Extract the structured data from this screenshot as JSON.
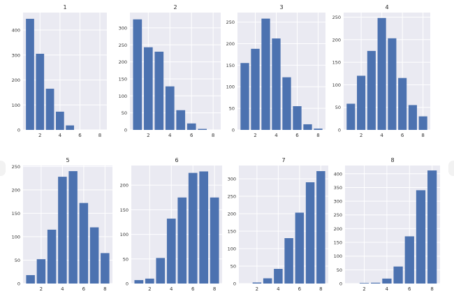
{
  "chart_data": [
    {
      "type": "bar",
      "title": "1",
      "x": [
        1,
        2,
        3,
        4,
        5
      ],
      "values": [
        445,
        305,
        165,
        73,
        18
      ],
      "ylim": [
        0,
        470
      ],
      "yticks": [
        0,
        100,
        200,
        300,
        400
      ],
      "xticks": [
        2,
        4,
        6,
        8
      ],
      "xlim": [
        0.3,
        8.7
      ],
      "grid": true,
      "color": "#4c72b0"
    },
    {
      "type": "bar",
      "title": "2",
      "x": [
        1,
        2,
        3,
        4,
        5,
        6,
        7
      ],
      "values": [
        325,
        243,
        230,
        128,
        58,
        19,
        3
      ],
      "ylim": [
        0,
        345
      ],
      "yticks": [
        0,
        50,
        100,
        150,
        200,
        250,
        300
      ],
      "xticks": [
        2,
        4,
        6,
        8
      ],
      "xlim": [
        0.3,
        8.7
      ],
      "grid": true,
      "color": "#4c72b0"
    },
    {
      "type": "bar",
      "title": "3",
      "x": [
        1,
        2,
        3,
        4,
        5,
        6,
        7,
        8
      ],
      "values": [
        155,
        188,
        258,
        212,
        122,
        55,
        13,
        3
      ],
      "ylim": [
        0,
        272
      ],
      "yticks": [
        0,
        50,
        100,
        150,
        200,
        250
      ],
      "xticks": [
        2,
        4,
        6,
        8
      ],
      "xlim": [
        0.3,
        8.7
      ],
      "grid": true,
      "color": "#4c72b0"
    },
    {
      "type": "bar",
      "title": "4",
      "x": [
        1,
        2,
        3,
        4,
        5,
        6,
        7,
        8
      ],
      "values": [
        58,
        120,
        175,
        248,
        203,
        115,
        55,
        30
      ],
      "ylim": [
        0,
        260
      ],
      "yticks": [
        0,
        50,
        100,
        150,
        200,
        250
      ],
      "xticks": [
        2,
        4,
        6,
        8
      ],
      "xlim": [
        0.3,
        8.7
      ],
      "grid": true,
      "color": "#4c72b0"
    },
    {
      "type": "bar",
      "title": "5",
      "x": [
        1,
        2,
        3,
        4,
        5,
        6,
        7,
        8
      ],
      "values": [
        18,
        52,
        115,
        228,
        240,
        172,
        120,
        65
      ],
      "ylim": [
        0,
        252
      ],
      "yticks": [
        0,
        50,
        100,
        150,
        200,
        250
      ],
      "xticks": [
        2,
        4,
        6,
        8
      ],
      "xlim": [
        0.3,
        8.7
      ],
      "grid": true,
      "color": "#4c72b0"
    },
    {
      "type": "bar",
      "title": "6",
      "x": [
        1,
        2,
        3,
        4,
        5,
        6,
        7,
        8
      ],
      "values": [
        7,
        10,
        52,
        132,
        175,
        225,
        228,
        175
      ],
      "ylim": [
        0,
        240
      ],
      "yticks": [
        0,
        50,
        100,
        150,
        200
      ],
      "xticks": [
        2,
        4,
        6,
        8
      ],
      "xlim": [
        0.3,
        8.7
      ],
      "grid": true,
      "color": "#4c72b0"
    },
    {
      "type": "bar",
      "title": "7",
      "x": [
        2,
        3,
        4,
        5,
        6,
        7,
        8
      ],
      "values": [
        3,
        15,
        42,
        130,
        203,
        290,
        322
      ],
      "ylim": [
        0,
        338
      ],
      "yticks": [
        0,
        50,
        100,
        150,
        200,
        250,
        300
      ],
      "xticks": [
        2,
        4,
        6,
        8
      ],
      "xlim": [
        0.3,
        8.7
      ],
      "grid": true,
      "color": "#4c72b0"
    },
    {
      "type": "bar",
      "title": "8",
      "x": [
        2,
        3,
        4,
        5,
        6,
        7,
        8
      ],
      "values": [
        2,
        3,
        18,
        62,
        172,
        340,
        412
      ],
      "ylim": [
        0,
        430
      ],
      "yticks": [
        0,
        50,
        100,
        150,
        200,
        250,
        300,
        350,
        400
      ],
      "xticks": [
        2,
        4,
        6,
        8
      ],
      "xlim": [
        0.3,
        8.7
      ],
      "grid": true,
      "color": "#4c72b0"
    }
  ]
}
